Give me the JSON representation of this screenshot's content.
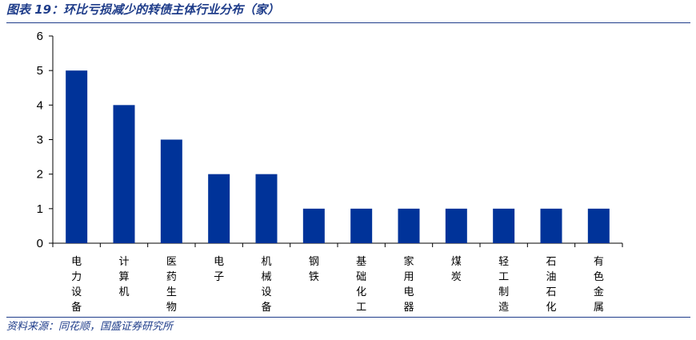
{
  "title": "图表 19：环比亏损减少的转债主体行业分布（家）",
  "source": "资料来源：同花顺，国盛证券研究所",
  "colors": {
    "bar": "#003399",
    "rule": "#1f3d8a",
    "axis": "#000000"
  },
  "chart_data": {
    "type": "bar",
    "title": "图表 19：环比亏损减少的转债主体行业分布（家）",
    "categories": [
      "电力设备",
      "计算机",
      "医药生物",
      "电子",
      "机械设备",
      "钢铁",
      "基础化工",
      "家用电器",
      "煤炭",
      "轻工制造",
      "石油石化",
      "有色金属"
    ],
    "values": [
      5,
      4,
      3,
      2,
      2,
      1,
      1,
      1,
      1,
      1,
      1,
      1
    ],
    "yticks": [
      "0",
      "1",
      "2",
      "3",
      "4",
      "5",
      "6"
    ],
    "ylim": [
      0,
      6
    ],
    "xlabel": "",
    "ylabel": "",
    "grid": false,
    "legend": "none"
  }
}
